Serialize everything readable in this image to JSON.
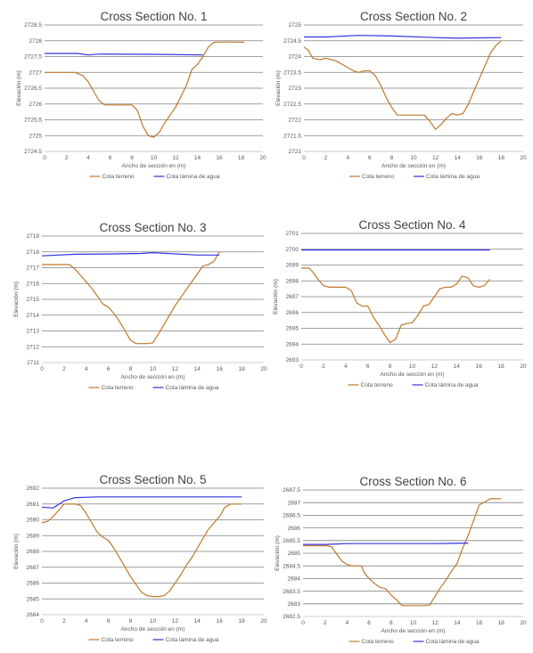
{
  "legend": {
    "terrain_label": "Cota terreno",
    "water_label": "Cota lámina de agua"
  },
  "colors": {
    "terrain": "#c0782b",
    "water": "#3333e0",
    "grid": "#7f7f7f",
    "axis": "#bfbfbf"
  },
  "chart_data": [
    {
      "type": "line",
      "title": "Cross Section No. 1",
      "xlabel": "Ancho de sección en (m)",
      "ylabel": "Elevación (m)",
      "xlim": [
        0,
        20
      ],
      "xticks": [
        0,
        2,
        4,
        6,
        8,
        10,
        12,
        14,
        16,
        18,
        20
      ],
      "ylim": [
        2724.5,
        2728.5
      ],
      "yticks": [
        2724.5,
        2725,
        2725.5,
        2726,
        2726.5,
        2727,
        2727.5,
        2728,
        2728.5
      ],
      "series": [
        {
          "name": "Cota terreno",
          "x": [
            0,
            2.8,
            3.5,
            4,
            4.5,
            5,
            5.5,
            6,
            7,
            8,
            8.5,
            9,
            9.5,
            10,
            10.5,
            11,
            12,
            13,
            13.5,
            14,
            14.5,
            15,
            15.5,
            16,
            16.5,
            17,
            18.3
          ],
          "y": [
            2727,
            2727,
            2726.9,
            2726.7,
            2726.4,
            2726.1,
            2725.97,
            2725.97,
            2725.97,
            2725.97,
            2725.8,
            2725.3,
            2725,
            2724.95,
            2725.1,
            2725.4,
            2725.9,
            2726.6,
            2727.1,
            2727.25,
            2727.5,
            2727.8,
            2727.95,
            2727.96,
            2727.96,
            2727.96,
            2727.95
          ]
        },
        {
          "name": "Cota lámina de agua",
          "x": [
            0,
            3,
            4,
            5,
            10,
            14.5
          ],
          "y": [
            2727.6,
            2727.6,
            2727.55,
            2727.58,
            2727.57,
            2727.55
          ]
        }
      ]
    },
    {
      "type": "line",
      "title": "Cross Section No. 2",
      "xlabel": "Ancho de sección en (m)",
      "ylabel": "Elevación (m)",
      "xlim": [
        0,
        20
      ],
      "xticks": [
        0,
        2,
        4,
        6,
        8,
        10,
        12,
        14,
        16,
        18,
        20
      ],
      "ylim": [
        2721,
        2725
      ],
      "yticks": [
        2721,
        2721.5,
        2722,
        2722.5,
        2723,
        2723.5,
        2724,
        2724.5,
        2725
      ],
      "series": [
        {
          "name": "Cota terreno",
          "x": [
            0,
            0.4,
            0.8,
            1.5,
            2,
            2.5,
            3,
            3.5,
            4,
            4.5,
            5,
            5.5,
            6,
            6.5,
            7,
            7.5,
            8,
            8.5,
            9,
            10,
            11,
            11.5,
            12,
            12.5,
            13,
            13.5,
            14,
            14.5,
            15,
            15.5,
            16,
            16.5,
            17,
            17.5,
            18
          ],
          "y": [
            2724.3,
            2724.2,
            2723.95,
            2723.9,
            2723.95,
            2723.9,
            2723.85,
            2723.75,
            2723.65,
            2723.55,
            2723.5,
            2723.55,
            2723.55,
            2723.4,
            2723.1,
            2722.7,
            2722.4,
            2722.15,
            2722.15,
            2722.15,
            2722.15,
            2721.95,
            2721.7,
            2721.85,
            2722.05,
            2722.2,
            2722.15,
            2722.2,
            2722.5,
            2722.9,
            2723.3,
            2723.7,
            2724.1,
            2724.35,
            2724.5
          ]
        },
        {
          "name": "Cota lámina de agua",
          "x": [
            0,
            2,
            5,
            8,
            12,
            14,
            18
          ],
          "y": [
            2724.62,
            2724.62,
            2724.67,
            2724.65,
            2724.6,
            2724.58,
            2724.6
          ]
        }
      ]
    },
    {
      "type": "line",
      "title": "Cross Section No. 3",
      "xlabel": "Ancho de sección en (m)",
      "ylabel": "Elevación (m)",
      "xlim": [
        0,
        20
      ],
      "xticks": [
        0,
        2,
        4,
        6,
        8,
        10,
        12,
        14,
        16,
        18,
        20
      ],
      "ylim": [
        2711,
        2719
      ],
      "yticks": [
        2711,
        2712,
        2713,
        2714,
        2715,
        2716,
        2717,
        2718,
        2719
      ],
      "series": [
        {
          "name": "Cota terreno",
          "x": [
            0,
            2.5,
            3,
            3.5,
            4,
            4.5,
            5,
            5.5,
            6,
            6.5,
            7,
            7.5,
            8,
            8.5,
            9,
            9.5,
            10,
            10.5,
            11,
            11.5,
            12,
            12.5,
            13,
            13.5,
            14,
            14.5,
            15,
            15.5,
            16
          ],
          "y": [
            2717.2,
            2717.2,
            2716.9,
            2716.5,
            2716.1,
            2715.7,
            2715.2,
            2714.7,
            2714.5,
            2714.1,
            2713.6,
            2713,
            2712.4,
            2712.2,
            2712.2,
            2712.2,
            2712.25,
            2712.8,
            2713.4,
            2714,
            2714.6,
            2715.1,
            2715.6,
            2716.1,
            2716.6,
            2717.1,
            2717.2,
            2717.4,
            2718
          ]
        },
        {
          "name": "Cota lámina de agua",
          "x": [
            0,
            3,
            6,
            9,
            10,
            14,
            16
          ],
          "y": [
            2717.75,
            2717.85,
            2717.87,
            2717.9,
            2717.95,
            2717.8,
            2717.8
          ]
        }
      ]
    },
    {
      "type": "line",
      "title": "Cross Section No. 4",
      "xlabel": "Ancho de sección en (m)",
      "ylabel": "Elevación (m)",
      "xlim": [
        0,
        20
      ],
      "xticks": [
        0,
        2,
        4,
        6,
        8,
        10,
        12,
        14,
        16,
        18,
        20
      ],
      "ylim": [
        2693,
        2701
      ],
      "yticks": [
        2693,
        2694,
        2695,
        2696,
        2697,
        2698,
        2699,
        2700,
        2701
      ],
      "series": [
        {
          "name": "Cota terreno",
          "x": [
            0,
            0.7,
            1,
            1.5,
            2,
            2.5,
            3,
            3.5,
            4,
            4.5,
            5,
            5.5,
            6,
            6.5,
            7,
            7.5,
            8,
            8.5,
            9,
            9.5,
            10,
            10.5,
            11,
            11.5,
            12,
            12.5,
            13,
            13.5,
            14,
            14.5,
            15,
            15.5,
            16,
            16.5,
            17
          ],
          "y": [
            2698.8,
            2698.8,
            2698.6,
            2698.1,
            2697.7,
            2697.6,
            2697.6,
            2697.6,
            2697.6,
            2697.4,
            2696.6,
            2696.4,
            2696.4,
            2695.7,
            2695.2,
            2694.6,
            2694.1,
            2694.3,
            2695.2,
            2695.3,
            2695.35,
            2695.8,
            2696.4,
            2696.5,
            2697,
            2697.5,
            2697.6,
            2697.6,
            2697.8,
            2698.3,
            2698.2,
            2697.7,
            2697.6,
            2697.7,
            2698.1
          ]
        },
        {
          "name": "Cota lámina de agua",
          "x": [
            0,
            17
          ],
          "y": [
            2699.95,
            2699.95
          ]
        }
      ]
    },
    {
      "type": "line",
      "title": "Cross Section No. 5",
      "xlabel": "Ancho de sección en (m)",
      "ylabel": "Elevación (m)",
      "xlim": [
        0,
        20
      ],
      "xticks": [
        0,
        2,
        4,
        6,
        8,
        10,
        12,
        14,
        16,
        18,
        20
      ],
      "ylim": [
        2684,
        2692
      ],
      "yticks": [
        2684,
        2685,
        2686,
        2687,
        2688,
        2689,
        2690,
        2691,
        2692
      ],
      "series": [
        {
          "name": "Cota terreno",
          "x": [
            0,
            0.5,
            1,
            1.5,
            2,
            3,
            3.5,
            4,
            4.5,
            5,
            5.5,
            6,
            6.5,
            7,
            7.5,
            8,
            8.5,
            9,
            9.5,
            10,
            10.5,
            11,
            11.5,
            12,
            12.5,
            13,
            13.5,
            14,
            14.5,
            15,
            15.5,
            16,
            16.5,
            17,
            18
          ],
          "y": [
            2689.8,
            2689.9,
            2690.2,
            2690.6,
            2691,
            2691,
            2690.9,
            2690.4,
            2689.8,
            2689.2,
            2688.9,
            2688.7,
            2688.2,
            2687.6,
            2687,
            2686.4,
            2685.9,
            2685.4,
            2685.2,
            2685.15,
            2685.15,
            2685.2,
            2685.5,
            2686,
            2686.5,
            2687.1,
            2687.6,
            2688.2,
            2688.8,
            2689.4,
            2689.8,
            2690.2,
            2690.8,
            2691,
            2691
          ]
        },
        {
          "name": "Cota lámina de agua",
          "x": [
            0,
            1,
            2,
            3,
            5,
            10,
            18
          ],
          "y": [
            2690.8,
            2690.75,
            2691.2,
            2691.4,
            2691.45,
            2691.45,
            2691.45
          ]
        }
      ]
    },
    {
      "type": "line",
      "title": "Cross Section No. 6",
      "xlabel": "Ancho de sección en (m)",
      "ylabel": "Elevación (m)",
      "xlim": [
        0,
        20
      ],
      "xticks": [
        0,
        2,
        4,
        6,
        8,
        10,
        12,
        14,
        16,
        18,
        20
      ],
      "ylim": [
        2682.5,
        2687.5
      ],
      "yticks": [
        2682.5,
        2683,
        2683.5,
        2684,
        2684.5,
        2685,
        2685.5,
        2686,
        2686.5,
        2687,
        2687.5
      ],
      "series": [
        {
          "name": "Cota terreno",
          "x": [
            0,
            2.2,
            2.6,
            3,
            3.5,
            4,
            4.5,
            5,
            5.3,
            5.6,
            6,
            6.5,
            7,
            7.5,
            8,
            8.5,
            9,
            9.5,
            10,
            10.5,
            11,
            11.5,
            12,
            12.5,
            13,
            13.5,
            14,
            14.5,
            15,
            15.5,
            16,
            17,
            18
          ],
          "y": [
            2685.3,
            2685.3,
            2685.25,
            2685,
            2684.7,
            2684.55,
            2684.5,
            2684.5,
            2684.5,
            2684.2,
            2684,
            2683.8,
            2683.65,
            2683.6,
            2683.35,
            2683.15,
            2682.93,
            2682.93,
            2682.93,
            2682.93,
            2682.93,
            2682.95,
            2683.3,
            2683.65,
            2683.95,
            2684.3,
            2684.6,
            2685.2,
            2685.7,
            2686.3,
            2686.9,
            2687.15,
            2687.15
          ]
        },
        {
          "name": "Cota lámina de agua",
          "x": [
            0,
            2,
            4,
            8,
            12,
            15
          ],
          "y": [
            2685.35,
            2685.35,
            2685.38,
            2685.38,
            2685.38,
            2685.4
          ]
        }
      ]
    }
  ]
}
